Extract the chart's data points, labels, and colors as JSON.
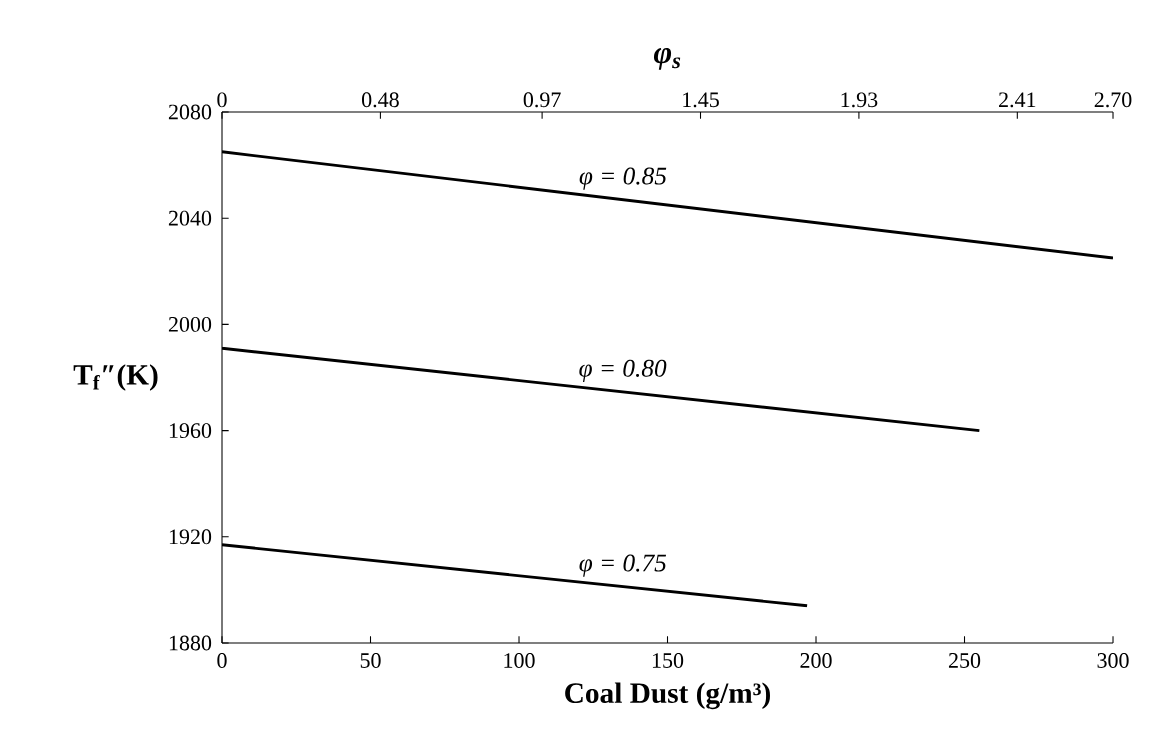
{
  "chart_data": {
    "type": "line",
    "xlabel": "Coal Dust (g/m³)",
    "x2label": "φ$_{s}$",
    "ylabel": "T$_{f}$″(K)",
    "xlim": [
      0,
      300
    ],
    "xticks": [
      0,
      50,
      100,
      150,
      200,
      250,
      300
    ],
    "x2lim": [
      0,
      2.7
    ],
    "x2ticks": [
      0,
      0.48,
      0.97,
      1.45,
      1.93,
      2.41,
      {
        "value": 2.7,
        "label": "2.70"
      }
    ],
    "ylim": [
      1880,
      2080
    ],
    "yticks": [
      1880,
      1920,
      1960,
      2000,
      2040,
      2080
    ],
    "series": [
      {
        "name": "φ = 0.85",
        "color": "#000000",
        "x": [
          0,
          300
        ],
        "values": [
          2065,
          2025
        ]
      },
      {
        "name": "φ = 0.80",
        "color": "#000000",
        "x": [
          0,
          255
        ],
        "values": [
          1991,
          1960
        ]
      },
      {
        "name": "φ = 0.75",
        "color": "#000000",
        "x": [
          0,
          197
        ],
        "values": [
          1917,
          1894
        ]
      }
    ]
  }
}
